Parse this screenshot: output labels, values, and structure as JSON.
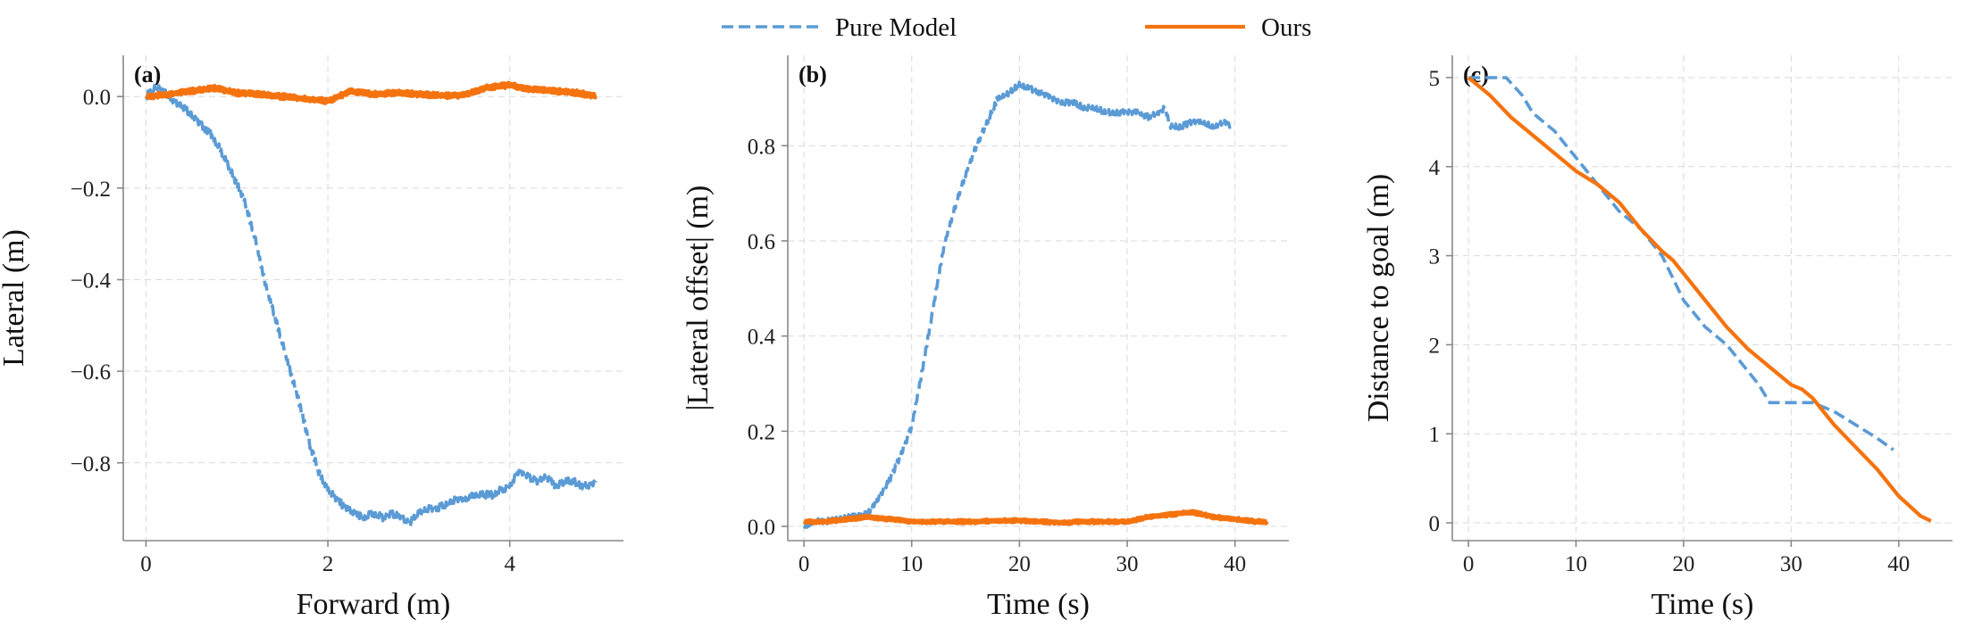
{
  "legend": {
    "placement": "top-center",
    "entries": [
      {
        "name": "Pure Model",
        "color": "#5B9BD5",
        "style": "dashed"
      },
      {
        "name": "Ours",
        "color": "#F5730F",
        "style": "solid"
      }
    ]
  },
  "chart_data": [
    {
      "type": "line",
      "panel_label": "(a)",
      "xlabel": "Forward (m)",
      "ylabel": "Lateral (m)",
      "xlim": [
        -0.25,
        5.25
      ],
      "ylim": [
        -0.97,
        0.09
      ],
      "xticks": [
        0,
        2,
        4
      ],
      "yticks": [
        0.0,
        -0.2,
        -0.4,
        -0.6,
        -0.8
      ],
      "xtick_labels": [
        "0",
        "2",
        "4"
      ],
      "ytick_labels": [
        "0.0",
        "−0.2",
        "−0.4",
        "−0.6",
        "−0.8"
      ],
      "grid": true,
      "series": [
        {
          "name": "Pure Model",
          "color": "#5B9BD5",
          "style": "dashed",
          "x": [
            0.0,
            0.1,
            0.2,
            0.3,
            0.4,
            0.5,
            0.6,
            0.7,
            0.8,
            0.9,
            1.0,
            1.1,
            1.2,
            1.3,
            1.4,
            1.5,
            1.6,
            1.7,
            1.8,
            1.9,
            2.0,
            2.1,
            2.2,
            2.3,
            2.4,
            2.5,
            2.6,
            2.7,
            2.8,
            2.9,
            3.0,
            3.1,
            3.2,
            3.3,
            3.4,
            3.5,
            3.6,
            3.7,
            3.8,
            3.9,
            4.0,
            4.1,
            4.2,
            4.3,
            4.4,
            4.5,
            4.6,
            4.7,
            4.8,
            4.9,
            4.95
          ],
          "y": [
            0.0,
            0.02,
            0.01,
            -0.01,
            -0.02,
            -0.04,
            -0.06,
            -0.08,
            -0.11,
            -0.15,
            -0.19,
            -0.24,
            -0.31,
            -0.4,
            -0.47,
            -0.54,
            -0.61,
            -0.68,
            -0.76,
            -0.82,
            -0.86,
            -0.88,
            -0.9,
            -0.91,
            -0.92,
            -0.91,
            -0.92,
            -0.91,
            -0.92,
            -0.93,
            -0.91,
            -0.9,
            -0.9,
            -0.89,
            -0.88,
            -0.88,
            -0.87,
            -0.87,
            -0.87,
            -0.86,
            -0.85,
            -0.82,
            -0.83,
            -0.84,
            -0.83,
            -0.85,
            -0.84,
            -0.84,
            -0.85,
            -0.85,
            -0.84
          ]
        },
        {
          "name": "Ours",
          "color": "#F5730F",
          "style": "solid",
          "x": [
            0.0,
            0.25,
            0.5,
            0.75,
            1.0,
            1.25,
            1.5,
            1.75,
            2.0,
            2.25,
            2.5,
            2.75,
            3.0,
            3.25,
            3.5,
            3.75,
            4.0,
            4.25,
            4.5,
            4.75,
            4.95
          ],
          "y": [
            0.0,
            0.005,
            0.012,
            0.018,
            0.008,
            0.005,
            0.0,
            -0.005,
            -0.01,
            0.012,
            0.005,
            0.008,
            0.005,
            0.002,
            0.003,
            0.02,
            0.025,
            0.015,
            0.012,
            0.008,
            0.0
          ]
        }
      ]
    },
    {
      "type": "line",
      "panel_label": "(b)",
      "xlabel": "Time (s)",
      "ylabel": "|Lateral offset| (m)",
      "xlim": [
        -1.5,
        45
      ],
      "ylim": [
        -0.03,
        0.99
      ],
      "xticks": [
        0,
        10,
        20,
        30,
        40
      ],
      "yticks": [
        0.0,
        0.2,
        0.4,
        0.6,
        0.8
      ],
      "xtick_labels": [
        "0",
        "10",
        "20",
        "30",
        "40"
      ],
      "ytick_labels": [
        "0.0",
        "0.2",
        "0.4",
        "0.6",
        "0.8"
      ],
      "grid": true,
      "series": [
        {
          "name": "Pure Model",
          "color": "#5B9BD5",
          "style": "dashed",
          "x": [
            0,
            1,
            2,
            3,
            4,
            5,
            6,
            7,
            8,
            9,
            10,
            11,
            12,
            13,
            14,
            15,
            16,
            17,
            18,
            19,
            20,
            21,
            22,
            23,
            24,
            25,
            26,
            27,
            28,
            29,
            30,
            31,
            32,
            33,
            33.5,
            34,
            35,
            36,
            37,
            38,
            39,
            39.6
          ],
          "y": [
            0.0,
            0.01,
            0.01,
            0.015,
            0.02,
            0.02,
            0.03,
            0.06,
            0.1,
            0.15,
            0.21,
            0.33,
            0.46,
            0.59,
            0.67,
            0.74,
            0.8,
            0.85,
            0.9,
            0.91,
            0.93,
            0.92,
            0.91,
            0.9,
            0.89,
            0.89,
            0.88,
            0.88,
            0.87,
            0.87,
            0.87,
            0.87,
            0.86,
            0.87,
            0.88,
            0.84,
            0.84,
            0.85,
            0.85,
            0.84,
            0.85,
            0.84
          ]
        },
        {
          "name": "Ours",
          "color": "#F5730F",
          "style": "solid",
          "x": [
            0,
            2,
            4,
            6,
            8,
            10,
            12,
            14,
            16,
            18,
            20,
            22,
            24,
            26,
            28,
            30,
            32,
            34,
            36,
            38,
            40,
            42,
            43
          ],
          "y": [
            0.01,
            0.01,
            0.015,
            0.02,
            0.015,
            0.01,
            0.01,
            0.01,
            0.01,
            0.012,
            0.012,
            0.01,
            0.008,
            0.01,
            0.01,
            0.01,
            0.02,
            0.025,
            0.03,
            0.02,
            0.015,
            0.01,
            0.01
          ]
        }
      ]
    },
    {
      "type": "line",
      "panel_label": "(c)",
      "xlabel": "Time (s)",
      "ylabel": "Distance to goal (m)",
      "xlim": [
        -1.5,
        45
      ],
      "ylim": [
        -0.2,
        5.25
      ],
      "xticks": [
        0,
        10,
        20,
        30,
        40
      ],
      "yticks": [
        0,
        1,
        2,
        3,
        4,
        5
      ],
      "xtick_labels": [
        "0",
        "10",
        "20",
        "30",
        "40"
      ],
      "ytick_labels": [
        "0",
        "1",
        "2",
        "3",
        "4",
        "5"
      ],
      "grid": true,
      "series": [
        {
          "name": "Pure Model",
          "color": "#5B9BD5",
          "style": "dashed",
          "x": [
            0,
            2,
            3.5,
            5,
            6,
            8,
            10,
            12,
            14,
            16,
            18,
            20,
            22,
            24,
            26,
            27,
            28,
            30,
            32,
            33,
            34,
            36,
            38,
            39.5
          ],
          "y": [
            5.0,
            5.0,
            5.0,
            4.8,
            4.6,
            4.4,
            4.1,
            3.8,
            3.5,
            3.3,
            3.0,
            2.5,
            2.2,
            2.0,
            1.7,
            1.55,
            1.35,
            1.35,
            1.35,
            1.3,
            1.25,
            1.1,
            0.95,
            0.82
          ]
        },
        {
          "name": "Ours",
          "color": "#F5730F",
          "style": "solid",
          "x": [
            0,
            2,
            4,
            6,
            8,
            10,
            12,
            14,
            16,
            18,
            19,
            20,
            22,
            24,
            26,
            28,
            30,
            31,
            32,
            34,
            36,
            38,
            40,
            42,
            43
          ],
          "y": [
            5.0,
            4.8,
            4.55,
            4.35,
            4.15,
            3.95,
            3.8,
            3.6,
            3.3,
            3.05,
            2.95,
            2.8,
            2.5,
            2.2,
            1.95,
            1.75,
            1.55,
            1.5,
            1.4,
            1.1,
            0.85,
            0.6,
            0.3,
            0.08,
            0.02
          ]
        }
      ]
    }
  ]
}
